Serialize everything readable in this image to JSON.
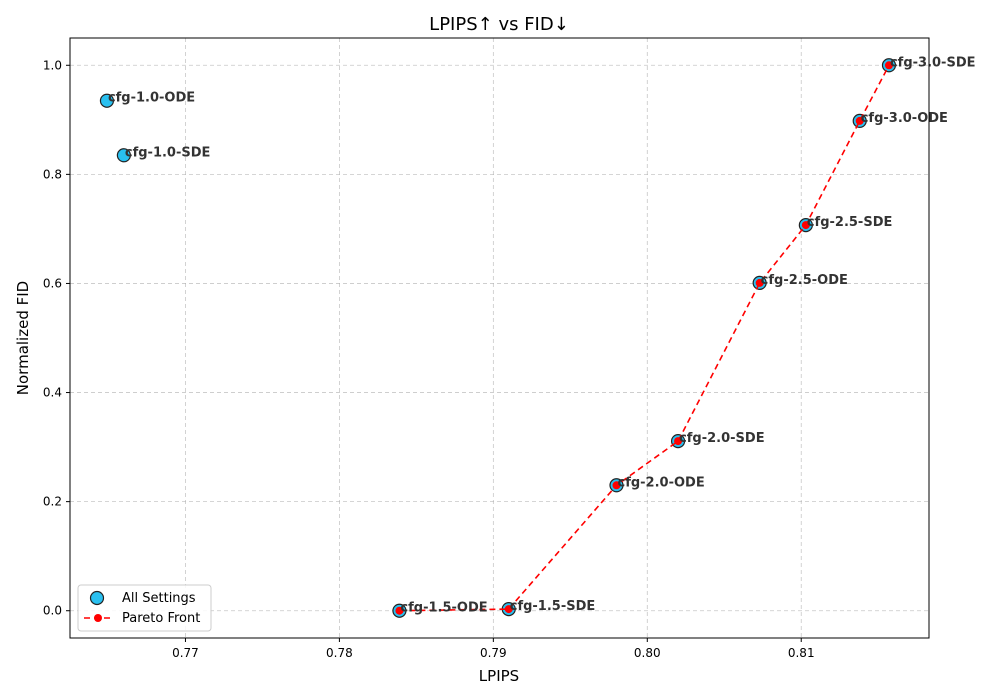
{
  "chart_data": {
    "type": "scatter",
    "title": "LPIPS↑ vs FID↓",
    "xlabel": "LPIPS",
    "ylabel": "Normalized FID",
    "xlim": [
      0.7625,
      0.8183
    ],
    "ylim": [
      -0.05,
      1.05
    ],
    "xticks": [
      0.77,
      0.78,
      0.79,
      0.8,
      0.81
    ],
    "xtick_labels": [
      "0.77",
      "0.78",
      "0.79",
      "0.80",
      "0.81"
    ],
    "yticks": [
      0.0,
      0.2,
      0.4,
      0.6,
      0.8,
      1.0
    ],
    "ytick_labels": [
      "0.0",
      "0.2",
      "0.4",
      "0.6",
      "0.8",
      "1.0"
    ],
    "grid": true,
    "legend_position": "lower-left",
    "series": [
      {
        "name": "All Settings",
        "style": "markers",
        "color": "#29c0f0",
        "edge_color": "#222222",
        "points": [
          {
            "label": "cfg-1.0-ODE",
            "x": 0.7649,
            "y": 0.935
          },
          {
            "label": "cfg-1.0-SDE",
            "x": 0.766,
            "y": 0.835
          },
          {
            "label": "cfg-1.5-ODE",
            "x": 0.7839,
            "y": 0.0
          },
          {
            "label": "cfg-1.5-SDE",
            "x": 0.791,
            "y": 0.003
          },
          {
            "label": "cfg-2.0-ODE",
            "x": 0.798,
            "y": 0.23
          },
          {
            "label": "cfg-2.0-SDE",
            "x": 0.802,
            "y": 0.311
          },
          {
            "label": "cfg-2.5-ODE",
            "x": 0.8073,
            "y": 0.601
          },
          {
            "label": "cfg-2.5-SDE",
            "x": 0.8103,
            "y": 0.707
          },
          {
            "label": "cfg-3.0-ODE",
            "x": 0.8138,
            "y": 0.898
          },
          {
            "label": "cfg-3.0-SDE",
            "x": 0.8157,
            "y": 1.0
          }
        ]
      },
      {
        "name": "Pareto Front",
        "style": "dashed-line-markers",
        "color": "#ff0000",
        "points": [
          {
            "x": 0.7839,
            "y": 0.0
          },
          {
            "x": 0.791,
            "y": 0.003
          },
          {
            "x": 0.798,
            "y": 0.23
          },
          {
            "x": 0.802,
            "y": 0.311
          },
          {
            "x": 0.8073,
            "y": 0.601
          },
          {
            "x": 0.8103,
            "y": 0.707
          },
          {
            "x": 0.8138,
            "y": 0.898
          },
          {
            "x": 0.8157,
            "y": 1.0
          }
        ]
      }
    ]
  }
}
